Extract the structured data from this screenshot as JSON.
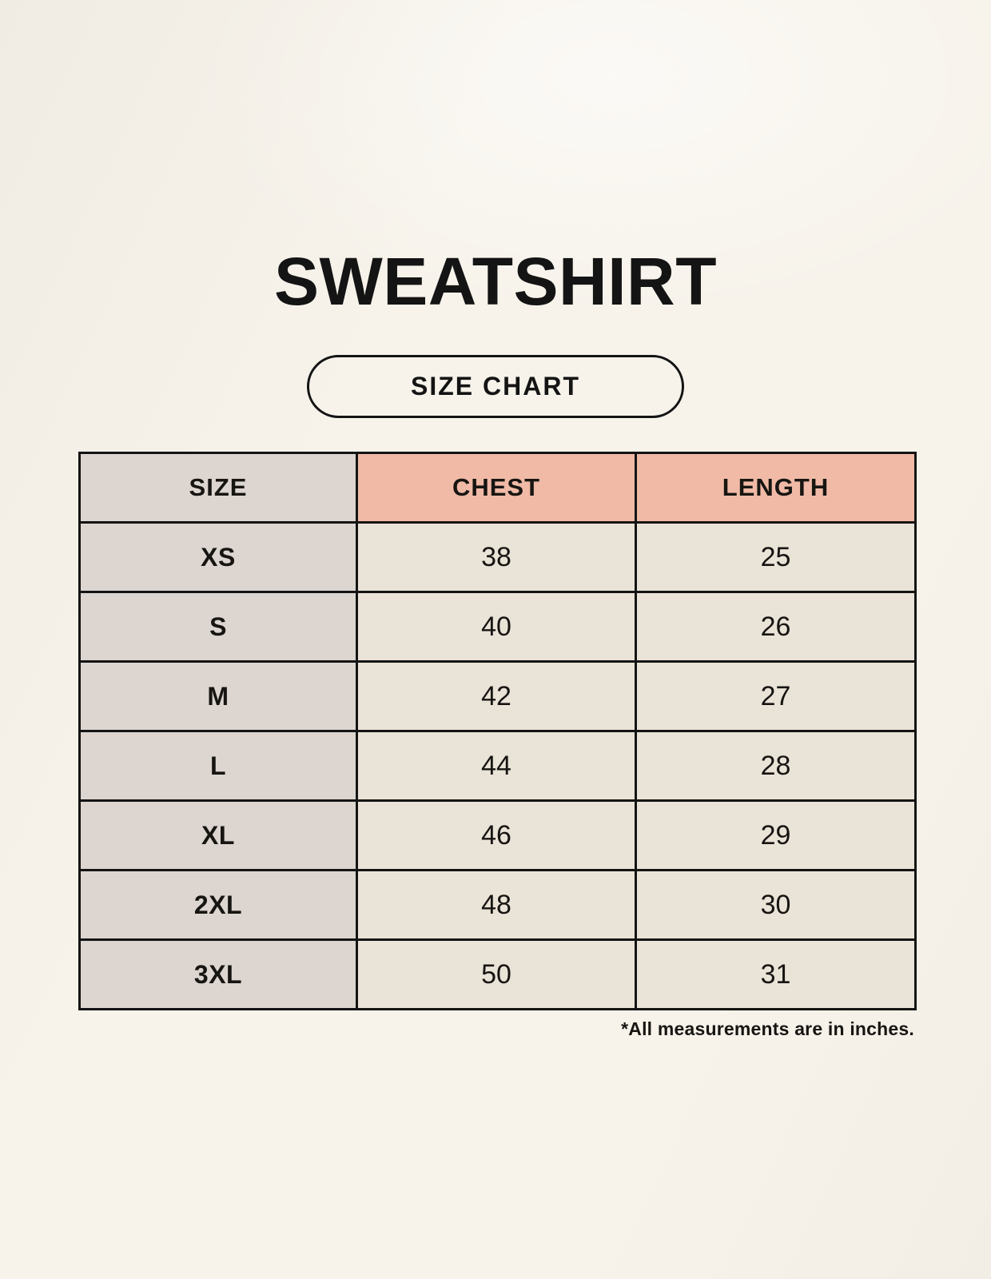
{
  "header": {
    "title": "SWEATSHIRT",
    "badge_label": "SIZE CHART"
  },
  "chart_data": {
    "type": "table",
    "title": "SWEATSHIRT",
    "columns": [
      "SIZE",
      "CHEST",
      "LENGTH"
    ],
    "rows": [
      {
        "size": "XS",
        "chest": "38",
        "length": "25"
      },
      {
        "size": "S",
        "chest": "40",
        "length": "26"
      },
      {
        "size": "M",
        "chest": "42",
        "length": "27"
      },
      {
        "size": "L",
        "chest": "44",
        "length": "28"
      },
      {
        "size": "XL",
        "chest": "46",
        "length": "29"
      },
      {
        "size": "2XL",
        "chest": "48",
        "length": "30"
      },
      {
        "size": "3XL",
        "chest": "50",
        "length": "31"
      }
    ],
    "units_note": "*All measurements are in inches."
  },
  "colors": {
    "background": "#F7F3EB",
    "size_column_bg": "#DCD5D0",
    "header_accent_bg": "#F0BAA6",
    "value_cell_bg": "#EAE3D7",
    "border": "#141414",
    "text": "#171512"
  }
}
